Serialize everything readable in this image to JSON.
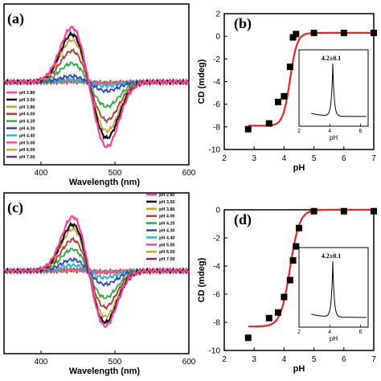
{
  "chart_data": [
    {
      "panel": "(a)",
      "type": "line",
      "xlabel": "Wavelength (nm)",
      "ylabel": "",
      "xlim": [
        350,
        600
      ],
      "xticks": [
        400,
        500,
        600
      ],
      "grid": false,
      "legend_position": "bottom-left",
      "series": [
        {
          "name": "pH 2.80",
          "color": "#ff3fa4",
          "values": [
            2.8,
            -3.3
          ]
        },
        {
          "name": "pH 3.50",
          "color": "#111111",
          "values": [
            2.45,
            -2.85
          ]
        },
        {
          "name": "pH 3.80",
          "color": "#c9a227",
          "values": [
            2.15,
            -2.5
          ]
        },
        {
          "name": "pH 4.00",
          "color": "#b23a3a",
          "values": [
            1.6,
            -1.95
          ]
        },
        {
          "name": "pH 4.20",
          "color": "#2eaa4a",
          "values": [
            0.95,
            -1.25
          ]
        },
        {
          "name": "pH 4.30",
          "color": "#3148b5",
          "values": [
            0.3,
            -0.45
          ]
        },
        {
          "name": "pH 4.40",
          "color": "#2bb8c8",
          "values": [
            0.12,
            -0.2
          ]
        },
        {
          "name": "pH 5.00",
          "color": "#e84d8a",
          "values": [
            0.05,
            -0.08
          ]
        },
        {
          "name": "pH 6.00",
          "color": "#bfa93a",
          "values": [
            0.03,
            -0.05
          ]
        },
        {
          "name": "pH 7.00",
          "color": "#7a2a7a",
          "values": [
            0.02,
            -0.03
          ]
        }
      ],
      "peak_nm": 443,
      "trough_nm": 488
    },
    {
      "panel": "(b)",
      "type": "scatter",
      "xlabel": "pH",
      "ylabel": "CD (mdeg)",
      "xlim": [
        2,
        7
      ],
      "ylim": [
        -10,
        2
      ],
      "xticks": [
        2,
        3,
        4,
        5,
        6,
        7
      ],
      "yticks": [
        -10,
        -8,
        -6,
        -4,
        -2,
        0,
        2
      ],
      "fit_color": "#e8262a",
      "points": [
        {
          "x": 2.8,
          "y": -8.2
        },
        {
          "x": 3.5,
          "y": -7.7
        },
        {
          "x": 3.8,
          "y": -5.8
        },
        {
          "x": 4.0,
          "y": -5.3
        },
        {
          "x": 4.2,
          "y": -2.7
        },
        {
          "x": 4.3,
          "y": -0.1
        },
        {
          "x": 4.4,
          "y": 0.2
        },
        {
          "x": 5.0,
          "y": 0.3
        },
        {
          "x": 6.0,
          "y": 0.3
        },
        {
          "x": 7.0,
          "y": 0.3
        }
      ],
      "fit": {
        "min": -7.9,
        "max": 0.3,
        "center": 4.2,
        "width": 0.12
      },
      "inset": {
        "annotation": "4.2±0.1",
        "xlabel": "pH",
        "xlim": [
          2,
          6.5
        ],
        "xticks": [
          2,
          4,
          6
        ],
        "peak_x": 4.2
      }
    },
    {
      "panel": "(c)",
      "type": "line",
      "xlabel": "Wavelength (nm)",
      "ylabel": "",
      "xlim": [
        350,
        600
      ],
      "xticks": [
        400,
        500,
        600
      ],
      "grid": false,
      "legend_position": "top-right",
      "series": [
        {
          "name": "pH 2.80",
          "color": "#ff3fa4",
          "values": [
            -2.9,
            2.85
          ]
        },
        {
          "name": "pH 3.50",
          "color": "#111111",
          "values": [
            -2.7,
            2.45
          ]
        },
        {
          "name": "pH 3.80",
          "color": "#c9a227",
          "values": [
            -2.4,
            2.2
          ]
        },
        {
          "name": "pH 4.00",
          "color": "#b23a3a",
          "values": [
            -1.9,
            1.65
          ]
        },
        {
          "name": "pH 4.20",
          "color": "#2eaa4a",
          "values": [
            -1.4,
            1.15
          ]
        },
        {
          "name": "pH 4.30",
          "color": "#3148b5",
          "values": [
            -0.7,
            0.6
          ]
        },
        {
          "name": "pH 4.40",
          "color": "#2bb8c8",
          "values": [
            -0.35,
            0.3
          ]
        },
        {
          "name": "pH 5.00",
          "color": "#e84d8a",
          "values": [
            -0.08,
            0.06
          ]
        },
        {
          "name": "pH 6.00",
          "color": "#bfa93a",
          "values": [
            -0.05,
            0.04
          ]
        },
        {
          "name": "pH 7.00",
          "color": "#7a2a7a",
          "values": [
            -0.03,
            0.02
          ]
        }
      ],
      "peak_nm": 485,
      "trough_nm": 445
    },
    {
      "panel": "(d)",
      "type": "scatter",
      "xlabel": "pH",
      "ylabel": "CD (mdeg)",
      "xlim": [
        2,
        7
      ],
      "ylim": [
        -10,
        0
      ],
      "xticks": [
        2,
        3,
        4,
        5,
        6,
        7
      ],
      "yticks": [
        -10,
        -8,
        -6,
        -4,
        -2,
        0
      ],
      "fit_color": "#e8262a",
      "points": [
        {
          "x": 2.8,
          "y": -9.1
        },
        {
          "x": 3.5,
          "y": -7.7
        },
        {
          "x": 3.8,
          "y": -7.3
        },
        {
          "x": 4.0,
          "y": -6.2
        },
        {
          "x": 4.2,
          "y": -5.0
        },
        {
          "x": 4.3,
          "y": -3.6
        },
        {
          "x": 4.4,
          "y": -2.6
        },
        {
          "x": 4.5,
          "y": -1.3
        },
        {
          "x": 5.0,
          "y": -0.1
        },
        {
          "x": 6.0,
          "y": -0.1
        },
        {
          "x": 7.0,
          "y": -0.1
        }
      ],
      "fit": {
        "min": -8.3,
        "max": 0.0,
        "center": 4.2,
        "width": 0.16
      },
      "inset": {
        "annotation": "4.2±0.1",
        "xlabel": "pH",
        "xlim": [
          2,
          6.5
        ],
        "xticks": [
          2,
          4,
          6
        ],
        "peak_x": 4.2
      }
    }
  ]
}
